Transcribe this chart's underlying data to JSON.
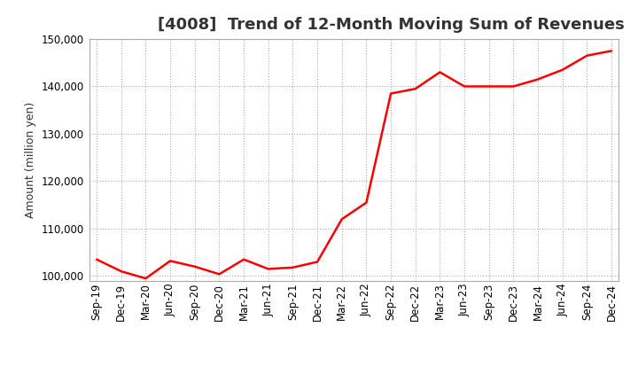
{
  "title": "[4008]  Trend of 12-Month Moving Sum of Revenues",
  "ylabel": "Amount (million yen)",
  "line_color": "#FF0000",
  "background_color": "#FFFFFF",
  "grid_color": "#999999",
  "title_color": "#333333",
  "ylim": [
    99000,
    150000
  ],
  "yticks": [
    100000,
    110000,
    120000,
    130000,
    140000,
    150000
  ],
  "labels": [
    "Sep-19",
    "Dec-19",
    "Mar-20",
    "Jun-20",
    "Sep-20",
    "Dec-20",
    "Mar-21",
    "Jun-21",
    "Sep-21",
    "Dec-21",
    "Mar-22",
    "Jun-22",
    "Sep-22",
    "Dec-22",
    "Mar-23",
    "Jun-23",
    "Sep-23",
    "Dec-23",
    "Mar-24",
    "Jun-24",
    "Sep-24",
    "Dec-24"
  ],
  "values": [
    103500,
    101000,
    99500,
    103200,
    102000,
    100400,
    103500,
    101500,
    101800,
    103000,
    112000,
    115500,
    138500,
    139500,
    143000,
    140000,
    140000,
    140000,
    141500,
    143500,
    146500,
    147500
  ],
  "title_fontsize": 13,
  "tick_fontsize": 8.5,
  "ylabel_fontsize": 9,
  "linewidth": 1.8
}
